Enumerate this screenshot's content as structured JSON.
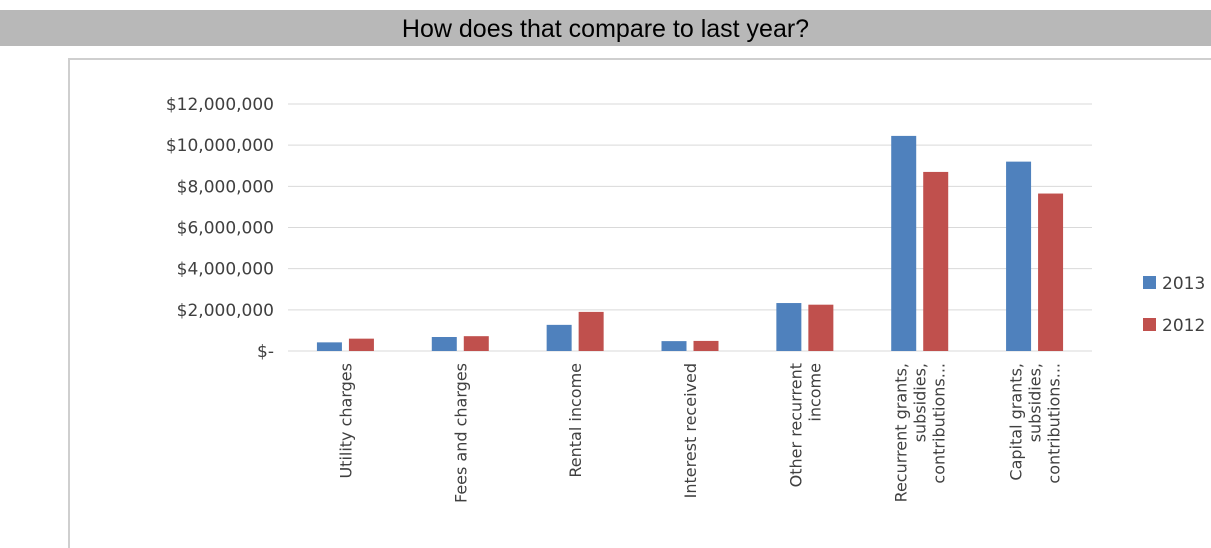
{
  "banner": {
    "title": "How does that compare to last year?"
  },
  "colors": {
    "series_2013": "#4f81bd",
    "series_2012": "#c0504d",
    "banner_bg": "#b8b8b8",
    "grid": "#d9d9d9"
  },
  "chart_data": {
    "type": "bar",
    "title": "",
    "xlabel": "",
    "ylabel": "",
    "ylim": [
      0,
      12000000
    ],
    "yticks": [
      {
        "value": 0,
        "label": "$-"
      },
      {
        "value": 2000000,
        "label": "$2,000,000"
      },
      {
        "value": 4000000,
        "label": "$4,000,000"
      },
      {
        "value": 6000000,
        "label": "$6,000,000"
      },
      {
        "value": 8000000,
        "label": "$8,000,000"
      },
      {
        "value": 10000000,
        "label": "$10,000,000"
      },
      {
        "value": 12000000,
        "label": "$12,000,000"
      }
    ],
    "grid": true,
    "legend_position": "right",
    "categories": [
      [
        "Utility charges"
      ],
      [
        "Fees and charges"
      ],
      [
        "Rental income"
      ],
      [
        "Interest received"
      ],
      [
        "Other recurrent",
        "income"
      ],
      [
        "Recurrent grants,",
        "subsidies,",
        "contributions..."
      ],
      [
        "Capital grants,",
        "subsidies,",
        "contributions..."
      ]
    ],
    "series": [
      {
        "name": "2013",
        "color": "#4f81bd",
        "values": [
          420000,
          680000,
          1270000,
          480000,
          2330000,
          10450000,
          9200000
        ]
      },
      {
        "name": "2012",
        "color": "#c0504d",
        "values": [
          600000,
          720000,
          1900000,
          490000,
          2250000,
          8700000,
          7650000
        ]
      }
    ]
  }
}
